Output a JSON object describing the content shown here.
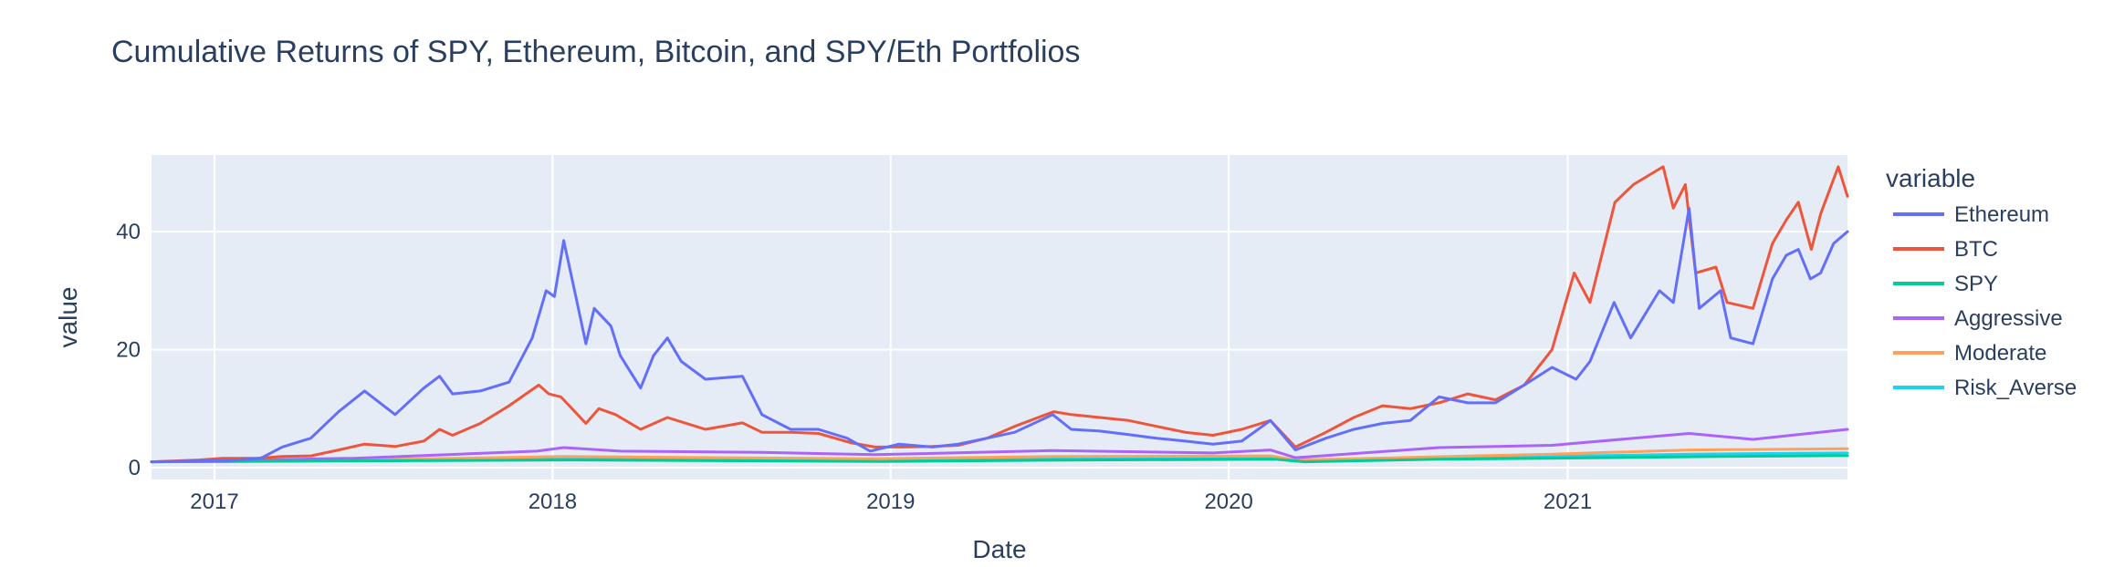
{
  "chart_data": {
    "type": "line",
    "title": "Cumulative Returns of SPY, Ethereum, Bitcoin, and SPY/Eth Portfolios",
    "xlabel": "Date",
    "ylabel": "value",
    "xlim": [
      "2016-10-25",
      "2021-10-30"
    ],
    "ylim": [
      -2,
      53
    ],
    "x_ticks": [
      "2017-01-01",
      "2018-01-01",
      "2019-01-01",
      "2020-01-01",
      "2021-01-01"
    ],
    "x_tick_labels": [
      "2017",
      "2018",
      "2019",
      "2020",
      "2021"
    ],
    "y_ticks": [
      0,
      20,
      40
    ],
    "y_tick_labels": [
      "0",
      "20",
      "40"
    ],
    "grid": true,
    "plot_background": "#e5ecf6",
    "legend": {
      "title": "variable",
      "placement": "right"
    },
    "series": [
      {
        "name": "Ethereum",
        "color": "#636efa",
        "points": [
          [
            "2016-10-25",
            1.0
          ],
          [
            "2016-12-01",
            1.1
          ],
          [
            "2017-01-15",
            1.2
          ],
          [
            "2017-02-20",
            1.6
          ],
          [
            "2017-03-15",
            3.5
          ],
          [
            "2017-04-15",
            5.0
          ],
          [
            "2017-05-15",
            9.5
          ],
          [
            "2017-06-12",
            13.0
          ],
          [
            "2017-07-15",
            9.0
          ],
          [
            "2017-08-15",
            13.5
          ],
          [
            "2017-09-01",
            15.5
          ],
          [
            "2017-09-15",
            12.5
          ],
          [
            "2017-10-15",
            13.0
          ],
          [
            "2017-11-15",
            14.5
          ],
          [
            "2017-12-10",
            22.0
          ],
          [
            "2017-12-25",
            30.0
          ],
          [
            "2018-01-03",
            29.0
          ],
          [
            "2018-01-13",
            38.5
          ],
          [
            "2018-01-22",
            32.0
          ],
          [
            "2018-02-06",
            21.0
          ],
          [
            "2018-02-15",
            27.0
          ],
          [
            "2018-03-05",
            24.0
          ],
          [
            "2018-03-15",
            19.0
          ],
          [
            "2018-04-06",
            13.5
          ],
          [
            "2018-04-20",
            19.0
          ],
          [
            "2018-05-05",
            22.0
          ],
          [
            "2018-05-20",
            18.0
          ],
          [
            "2018-06-15",
            15.0
          ],
          [
            "2018-07-25",
            15.5
          ],
          [
            "2018-08-15",
            9.0
          ],
          [
            "2018-09-15",
            6.5
          ],
          [
            "2018-10-15",
            6.5
          ],
          [
            "2018-11-15",
            5.0
          ],
          [
            "2018-12-10",
            2.8
          ],
          [
            "2019-01-10",
            4.0
          ],
          [
            "2019-02-15",
            3.5
          ],
          [
            "2019-03-15",
            4.0
          ],
          [
            "2019-04-15",
            5.0
          ],
          [
            "2019-05-15",
            6.0
          ],
          [
            "2019-06-25",
            9.0
          ],
          [
            "2019-07-15",
            6.5
          ],
          [
            "2019-08-15",
            6.2
          ],
          [
            "2019-09-15",
            5.6
          ],
          [
            "2019-10-15",
            5.0
          ],
          [
            "2019-11-15",
            4.5
          ],
          [
            "2019-12-15",
            4.0
          ],
          [
            "2020-01-15",
            4.5
          ],
          [
            "2020-02-15",
            8.0
          ],
          [
            "2020-03-13",
            3.0
          ],
          [
            "2020-04-15",
            5.0
          ],
          [
            "2020-05-15",
            6.5
          ],
          [
            "2020-06-15",
            7.5
          ],
          [
            "2020-07-15",
            8.0
          ],
          [
            "2020-08-15",
            12.0
          ],
          [
            "2020-09-15",
            11.0
          ],
          [
            "2020-10-15",
            11.0
          ],
          [
            "2020-11-15",
            14.0
          ],
          [
            "2020-12-15",
            17.0
          ],
          [
            "2021-01-10",
            15.0
          ],
          [
            "2021-01-25",
            18.0
          ],
          [
            "2021-02-20",
            28.0
          ],
          [
            "2021-03-10",
            22.0
          ],
          [
            "2021-04-10",
            30.0
          ],
          [
            "2021-04-25",
            28.0
          ],
          [
            "2021-05-12",
            44.0
          ],
          [
            "2021-05-23",
            27.0
          ],
          [
            "2021-06-15",
            30.0
          ],
          [
            "2021-06-26",
            22.0
          ],
          [
            "2021-07-20",
            21.0
          ],
          [
            "2021-08-10",
            32.0
          ],
          [
            "2021-08-25",
            36.0
          ],
          [
            "2021-09-07",
            37.0
          ],
          [
            "2021-09-20",
            32.0
          ],
          [
            "2021-10-01",
            33.0
          ],
          [
            "2021-10-15",
            38.0
          ],
          [
            "2021-10-30",
            40.0
          ]
        ]
      },
      {
        "name": "BTC",
        "color": "#ef553b",
        "points": [
          [
            "2016-10-25",
            1.0
          ],
          [
            "2016-12-15",
            1.3
          ],
          [
            "2017-01-10",
            1.6
          ],
          [
            "2017-02-15",
            1.6
          ],
          [
            "2017-03-15",
            1.9
          ],
          [
            "2017-04-15",
            2.0
          ],
          [
            "2017-05-15",
            3.0
          ],
          [
            "2017-06-12",
            4.0
          ],
          [
            "2017-07-15",
            3.6
          ],
          [
            "2017-08-15",
            4.5
          ],
          [
            "2017-09-01",
            6.5
          ],
          [
            "2017-09-15",
            5.5
          ],
          [
            "2017-10-15",
            7.5
          ],
          [
            "2017-11-15",
            10.5
          ],
          [
            "2017-12-17",
            14.0
          ],
          [
            "2017-12-28",
            12.5
          ],
          [
            "2018-01-10",
            12.0
          ],
          [
            "2018-02-06",
            7.5
          ],
          [
            "2018-02-20",
            10.0
          ],
          [
            "2018-03-10",
            9.0
          ],
          [
            "2018-04-06",
            6.5
          ],
          [
            "2018-05-05",
            8.5
          ],
          [
            "2018-06-15",
            6.5
          ],
          [
            "2018-07-25",
            7.6
          ],
          [
            "2018-08-15",
            6.0
          ],
          [
            "2018-09-15",
            6.0
          ],
          [
            "2018-10-15",
            5.8
          ],
          [
            "2018-11-20",
            4.2
          ],
          [
            "2018-12-15",
            3.5
          ],
          [
            "2019-01-15",
            3.5
          ],
          [
            "2019-02-15",
            3.6
          ],
          [
            "2019-03-15",
            3.8
          ],
          [
            "2019-04-15",
            5.0
          ],
          [
            "2019-05-15",
            7.0
          ],
          [
            "2019-06-26",
            9.5
          ],
          [
            "2019-07-15",
            9.0
          ],
          [
            "2019-08-15",
            8.5
          ],
          [
            "2019-09-15",
            8.0
          ],
          [
            "2019-10-15",
            7.0
          ],
          [
            "2019-11-15",
            6.0
          ],
          [
            "2019-12-15",
            5.5
          ],
          [
            "2020-01-15",
            6.5
          ],
          [
            "2020-02-15",
            8.0
          ],
          [
            "2020-03-13",
            3.5
          ],
          [
            "2020-04-15",
            6.0
          ],
          [
            "2020-05-15",
            8.5
          ],
          [
            "2020-06-15",
            10.5
          ],
          [
            "2020-07-15",
            10.0
          ],
          [
            "2020-08-15",
            11.0
          ],
          [
            "2020-09-15",
            12.5
          ],
          [
            "2020-10-15",
            11.5
          ],
          [
            "2020-11-15",
            14.0
          ],
          [
            "2020-12-15",
            20.0
          ],
          [
            "2021-01-08",
            33.0
          ],
          [
            "2021-01-25",
            28.0
          ],
          [
            "2021-02-21",
            45.0
          ],
          [
            "2021-03-13",
            48.0
          ],
          [
            "2021-04-14",
            51.0
          ],
          [
            "2021-04-25",
            44.0
          ],
          [
            "2021-05-08",
            48.0
          ],
          [
            "2021-05-19",
            33.0
          ],
          [
            "2021-06-10",
            34.0
          ],
          [
            "2021-06-22",
            28.0
          ],
          [
            "2021-07-20",
            27.0
          ],
          [
            "2021-08-10",
            38.0
          ],
          [
            "2021-08-25",
            42.0
          ],
          [
            "2021-09-07",
            45.0
          ],
          [
            "2021-09-21",
            37.0
          ],
          [
            "2021-10-01",
            43.0
          ],
          [
            "2021-10-20",
            51.0
          ],
          [
            "2021-10-30",
            46.0
          ]
        ]
      },
      {
        "name": "SPY",
        "color": "#00cc96",
        "points": [
          [
            "2016-10-25",
            1.0
          ],
          [
            "2017-06-01",
            1.15
          ],
          [
            "2018-01-15",
            1.3
          ],
          [
            "2018-12-24",
            1.05
          ],
          [
            "2019-06-01",
            1.25
          ],
          [
            "2020-02-19",
            1.45
          ],
          [
            "2020-03-23",
            1.0
          ],
          [
            "2020-08-15",
            1.45
          ],
          [
            "2021-01-15",
            1.65
          ],
          [
            "2021-06-15",
            1.9
          ],
          [
            "2021-10-30",
            2.05
          ]
        ]
      },
      {
        "name": "Aggressive",
        "color": "#ab63fa",
        "points": [
          [
            "2016-10-25",
            1.0
          ],
          [
            "2017-06-01",
            1.6
          ],
          [
            "2017-12-15",
            2.8
          ],
          [
            "2018-01-13",
            3.4
          ],
          [
            "2018-03-15",
            2.8
          ],
          [
            "2018-08-15",
            2.6
          ],
          [
            "2018-12-15",
            2.2
          ],
          [
            "2019-06-25",
            2.9
          ],
          [
            "2019-12-15",
            2.5
          ],
          [
            "2020-02-15",
            3.0
          ],
          [
            "2020-03-13",
            1.7
          ],
          [
            "2020-08-15",
            3.4
          ],
          [
            "2020-12-15",
            3.8
          ],
          [
            "2021-05-12",
            5.8
          ],
          [
            "2021-07-20",
            4.8
          ],
          [
            "2021-10-30",
            6.5
          ]
        ]
      },
      {
        "name": "Moderate",
        "color": "#ffa15a",
        "points": [
          [
            "2016-10-25",
            1.0
          ],
          [
            "2017-06-01",
            1.3
          ],
          [
            "2018-01-13",
            1.9
          ],
          [
            "2018-12-15",
            1.5
          ],
          [
            "2019-06-25",
            1.9
          ],
          [
            "2020-02-15",
            2.0
          ],
          [
            "2020-03-13",
            1.3
          ],
          [
            "2020-12-15",
            2.3
          ],
          [
            "2021-05-12",
            3.0
          ],
          [
            "2021-10-30",
            3.2
          ]
        ]
      },
      {
        "name": "Risk_Averse",
        "color": "#19d3f3",
        "points": [
          [
            "2016-10-25",
            1.0
          ],
          [
            "2017-06-01",
            1.2
          ],
          [
            "2018-01-13",
            1.5
          ],
          [
            "2018-12-15",
            1.2
          ],
          [
            "2019-06-25",
            1.5
          ],
          [
            "2020-02-15",
            1.6
          ],
          [
            "2020-03-13",
            1.1
          ],
          [
            "2020-12-15",
            1.9
          ],
          [
            "2021-05-12",
            2.3
          ],
          [
            "2021-10-30",
            2.5
          ]
        ]
      }
    ]
  }
}
